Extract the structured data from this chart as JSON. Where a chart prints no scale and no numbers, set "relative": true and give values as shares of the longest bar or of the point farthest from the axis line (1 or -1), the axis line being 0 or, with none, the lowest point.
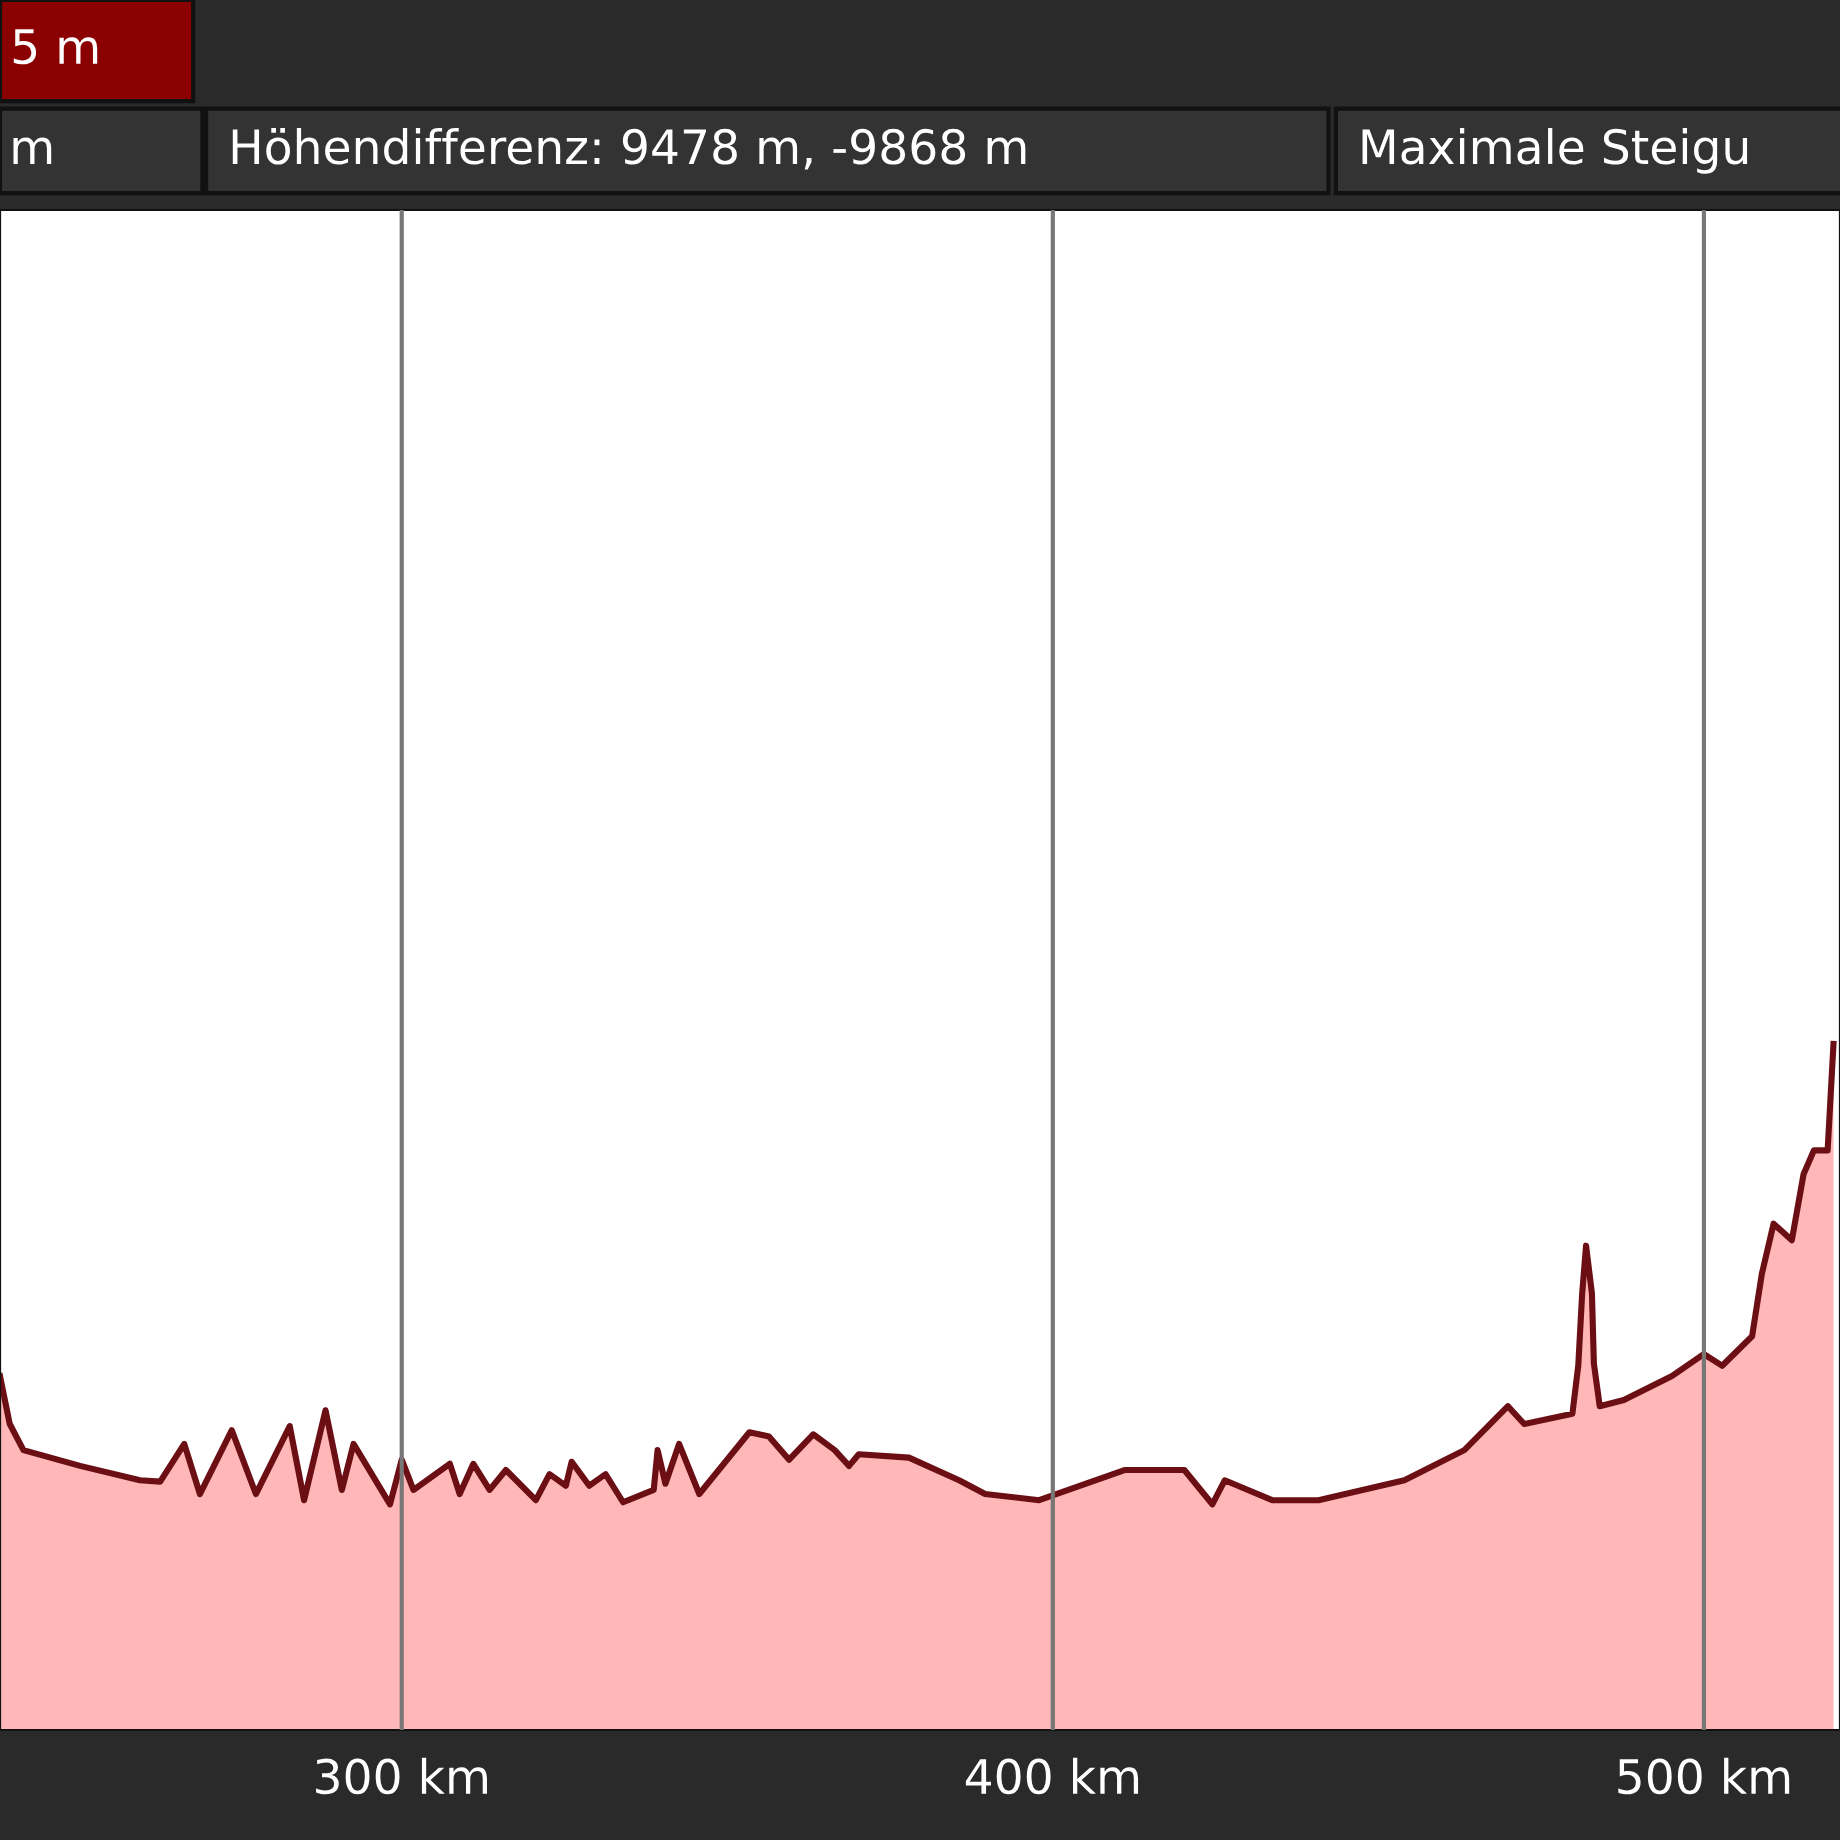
{
  "chart_data": {
    "type": "area",
    "relative": true,
    "x": [
      238.3,
      239.8,
      241.9,
      250.6,
      259.8,
      262.9,
      266.6,
      269.0,
      273.9,
      277.6,
      282.8,
      285.0,
      288.3,
      290.8,
      292.6,
      298.2,
      300.0,
      301.8,
      307.4,
      308.9,
      311.0,
      313.5,
      316.0,
      320.6,
      322.7,
      325.2,
      326.1,
      328.8,
      331.3,
      334.0,
      338.7,
      339.3,
      340.5,
      342.6,
      345.7,
      353.4,
      356.4,
      359.5,
      363.2,
      366.5,
      368.7,
      370.2,
      377.9,
      385.6,
      389.6,
      397.9,
      411.0,
      420.2,
      424.5,
      426.4,
      433.7,
      440.8,
      454.0,
      463.2,
      469.9,
      472.4,
      479.8,
      480.7,
      481.3,
      481.9,
      482.8,
      483.1,
      484.0,
      487.7,
      495.1,
      500.0,
      502.8,
      507.4,
      508.9,
      510.7,
      513.5,
      515.3,
      516.9,
      519.0,
      519.9
    ],
    "series": [
      {
        "color": "#6b0f14",
        "values": [
          0.516,
          0.446,
          0.408,
          0.385,
          0.364,
          0.362,
          0.417,
          0.344,
          0.437,
          0.344,
          0.443,
          0.335,
          0.466,
          0.35,
          0.417,
          0.329,
          0.394,
          0.35,
          0.388,
          0.344,
          0.388,
          0.35,
          0.379,
          0.335,
          0.373,
          0.356,
          0.391,
          0.356,
          0.373,
          0.332,
          0.35,
          0.408,
          0.359,
          0.417,
          0.344,
          0.434,
          0.428,
          0.394,
          0.431,
          0.408,
          0.385,
          0.402,
          0.397,
          0.364,
          0.344,
          0.335,
          0.379,
          0.379,
          0.329,
          0.364,
          0.335,
          0.335,
          0.364,
          0.408,
          0.472,
          0.446,
          0.461,
          0.531,
          0.636,
          0.706,
          0.636,
          0.534,
          0.472,
          0.481,
          0.516,
          0.548,
          0.531,
          0.574,
          0.665,
          0.738,
          0.714,
          0.81,
          0.845,
          0.845,
          1.0
        ]
      }
    ],
    "xlim": [
      238.3,
      520.9
    ],
    "xticks": [
      {
        "value": 300,
        "label": "300 km"
      },
      {
        "value": 400,
        "label": "400 km"
      },
      {
        "value": 500,
        "label": "500 km"
      }
    ],
    "grid": "x",
    "tick_labels": "x",
    "annotations": [
      "5 m",
      "m",
      "Höhendifferenz: 9478 m, -9868 m",
      "Maximale Steigu"
    ]
  }
}
